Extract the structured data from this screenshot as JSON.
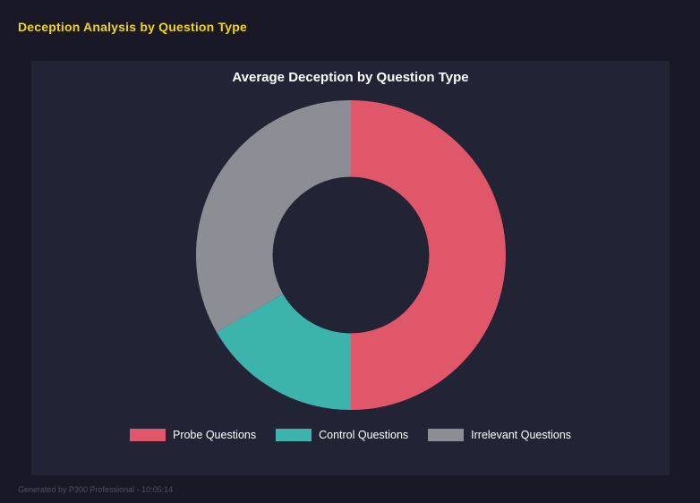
{
  "page": {
    "title": "Deception Analysis by Question Type",
    "footer": "Generated by P300 Professional - 10:05:14"
  },
  "chart_data": {
    "type": "pie",
    "subtype": "donut",
    "title": "Average Deception by Question Type",
    "labels": [
      "Probe Questions",
      "Control Questions",
      "Irrelevant Questions"
    ],
    "values": [
      50,
      16.7,
      33.3
    ],
    "value_units": "percent_of_total_estimated_from_arc_angles",
    "colors": [
      "#e0576a",
      "#3cb4ac",
      "#8d8d95"
    ],
    "donut_hole_ratio": 0.51,
    "start_angle_deg": -90,
    "direction": "clockwise",
    "legend_position": "bottom",
    "background": "#232336"
  }
}
